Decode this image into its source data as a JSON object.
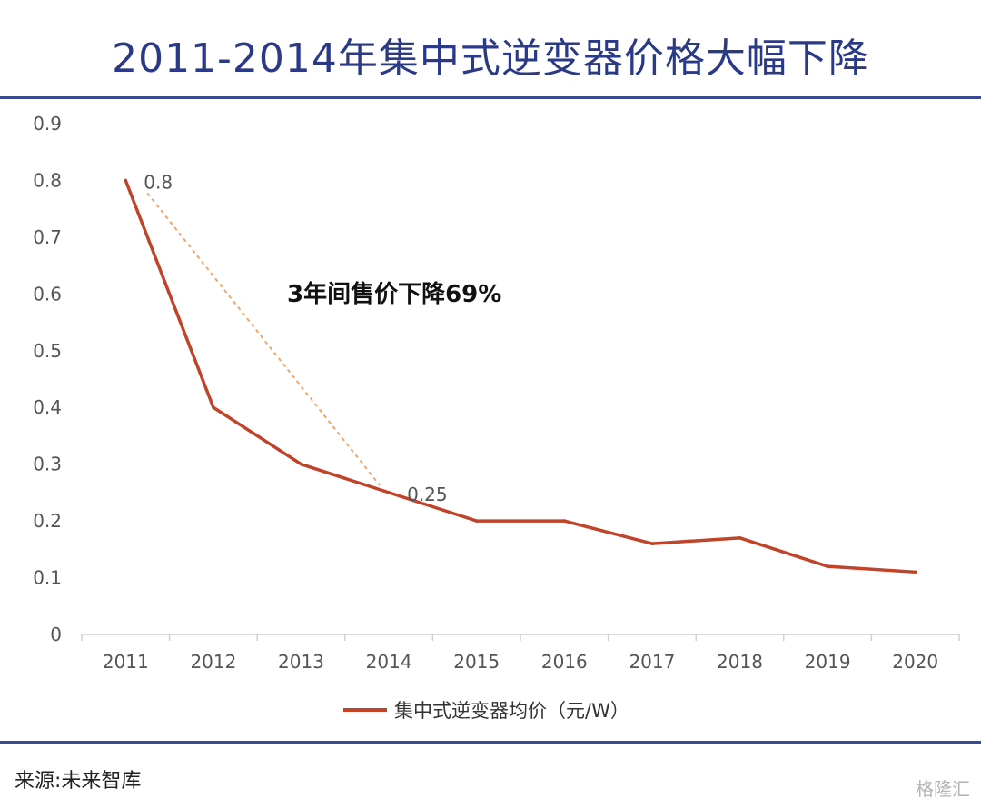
{
  "header": {
    "title": "2011-2014年集中式逆变器价格大幅下降"
  },
  "footer": {
    "source": "来源:未来智库",
    "watermark": "格隆汇"
  },
  "colors": {
    "title": "#2b3a86",
    "rule": "#3a4a93",
    "line": "#c0442a",
    "annotation_line": "#f0a46a",
    "axis_text": "#555555"
  },
  "chart_data": {
    "type": "line",
    "categories": [
      "2011",
      "2012",
      "2013",
      "2014",
      "2015",
      "2016",
      "2017",
      "2018",
      "2019",
      "2020"
    ],
    "series": [
      {
        "name": "集中式逆变器均价（元/W）",
        "values": [
          0.8,
          0.4,
          0.3,
          0.25,
          0.2,
          0.2,
          0.16,
          0.17,
          0.12,
          0.11
        ]
      }
    ],
    "yticks": [
      "0",
      "0.1",
      "0.2",
      "0.3",
      "0.4",
      "0.5",
      "0.6",
      "0.7",
      "0.8",
      "0.9"
    ],
    "ylim": [
      0,
      0.9
    ],
    "grid": false,
    "legend_position": "bottom",
    "data_labels": [
      {
        "category": "2011",
        "text": "0.8"
      },
      {
        "category": "2014",
        "text": "0.25"
      }
    ],
    "annotation": {
      "text": "3年间售价下降69%",
      "from": {
        "category": "2011",
        "value": 0.8
      },
      "to": {
        "category": "2014",
        "value": 0.25
      }
    }
  }
}
